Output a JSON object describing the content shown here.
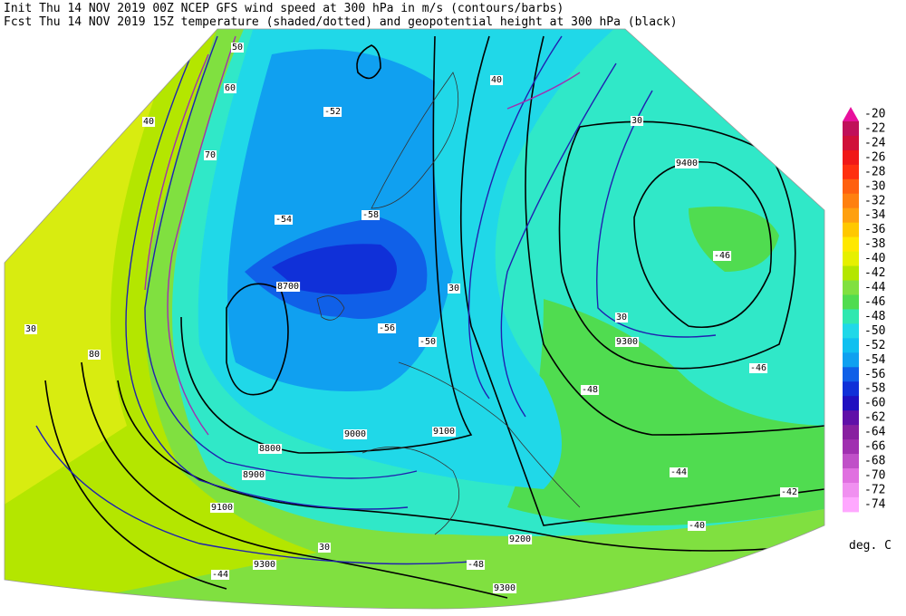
{
  "header": {
    "lines": [
      "Init  Thu 14 NOV 2019 00Z  NCEP GFS wind speed at 300 hPa in m/s (contours/barbs)",
      "Fcst Thu 14 NOV 2019 15Z  temperature (shaded/dotted) and geopotential height at 300 hPa (black)"
    ]
  },
  "colorbar": {
    "labels": [
      "-20",
      "-22",
      "-24",
      "-26",
      "-28",
      "-30",
      "-32",
      "-34",
      "-36",
      "-38",
      "-40",
      "-42",
      "-44",
      "-46",
      "-48",
      "-50",
      "-52",
      "-54",
      "-56",
      "-58",
      "-60",
      "-62",
      "-64",
      "-66",
      "-68",
      "-70",
      "-72",
      "-74"
    ],
    "colors": [
      "#e8109c",
      "#c0105a",
      "#d0103a",
      "#f01818",
      "#ff3010",
      "#ff6010",
      "#ff8010",
      "#ffa010",
      "#ffc800",
      "#ffe800",
      "#e6f000",
      "#b4e600",
      "#80e040",
      "#50dc50",
      "#30e8b0",
      "#20d8e8",
      "#10c0f0",
      "#10a0f0",
      "#1060e8",
      "#1030d8",
      "#2010c0",
      "#6010a8",
      "#8820a0",
      "#a030b0",
      "#c050c8",
      "#e070e0",
      "#f090f0",
      "#ffa8ff"
    ],
    "unit": "deg. C"
  },
  "map": {
    "labels": [
      "9400",
      "9300",
      "9300",
      "9200",
      "9300",
      "9100",
      "9000",
      "8900",
      "8800",
      "8700",
      "9100",
      "30",
      "30",
      "30",
      "30",
      "40",
      "40",
      "50",
      "60",
      "70",
      "80",
      "30",
      "-46",
      "-46",
      "-48",
      "-44",
      "-42",
      "-40",
      "-44",
      "-48",
      "-50",
      "-52",
      "-54",
      "-56",
      "-58"
    ]
  }
}
